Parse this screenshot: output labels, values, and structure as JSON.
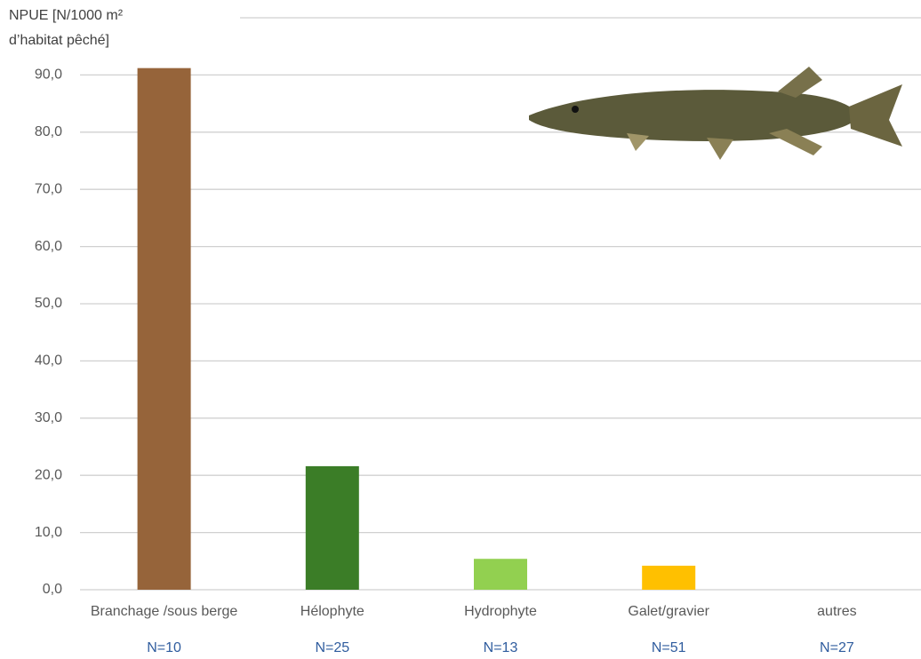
{
  "chart_data": {
    "type": "bar",
    "y_axis_label": [
      "NPUE [N/1000 m²",
      "d’habitat pêché]"
    ],
    "categories": [
      "Branchage /sous berge",
      "Hélophyte",
      "Hydrophyte",
      "Galet/gravier",
      "autres"
    ],
    "sample_sizes": [
      "N=10",
      "N=25",
      "N=13",
      "N=51",
      "N=27"
    ],
    "values": [
      91.2,
      21.6,
      5.4,
      4.2,
      0
    ],
    "colors": [
      "#96643a",
      "#3b7d27",
      "#92d050",
      "#ffc000",
      "#a5a5a5"
    ],
    "ylim": [
      0,
      100
    ],
    "yticks": [
      {
        "value": 0,
        "label": "0,0"
      },
      {
        "value": 10,
        "label": "10,0"
      },
      {
        "value": 20,
        "label": "20,0"
      },
      {
        "value": 30,
        "label": "30,0"
      },
      {
        "value": 40,
        "label": "40,0"
      },
      {
        "value": 50,
        "label": "50,0"
      },
      {
        "value": 60,
        "label": "60,0"
      },
      {
        "value": 70,
        "label": "70,0"
      },
      {
        "value": 80,
        "label": "80,0"
      },
      {
        "value": 90,
        "label": "90,0"
      }
    ],
    "grid": true
  }
}
